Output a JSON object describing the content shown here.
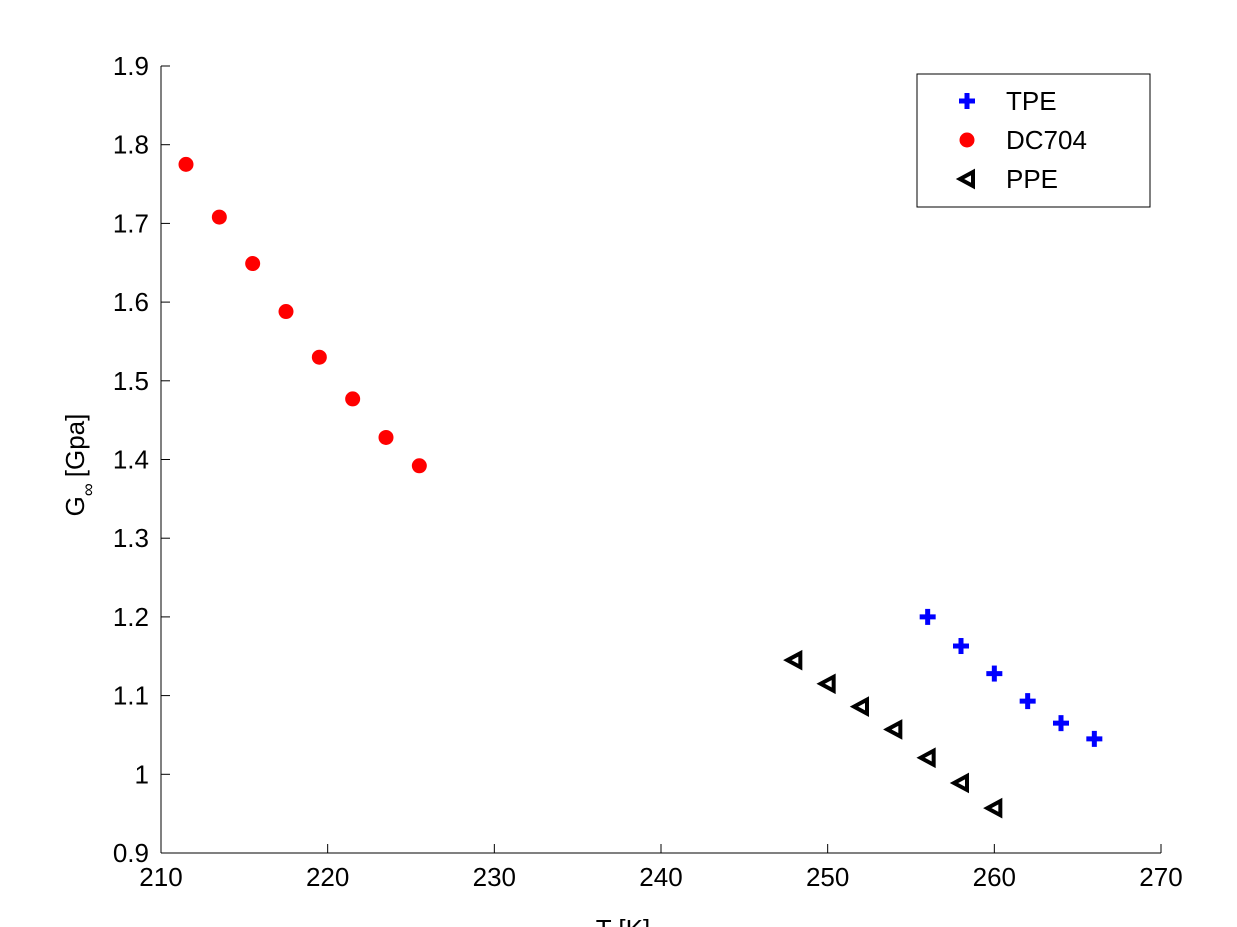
{
  "chart_data": {
    "type": "scatter",
    "title": "",
    "xlabel": "T [K]",
    "ylabel": "G∞ [Gpa]",
    "ylabel_main": "G",
    "ylabel_sub": "∞",
    "ylabel_unit": "[Gpa]",
    "xlim": [
      210,
      270
    ],
    "ylim": [
      0.9,
      1.9
    ],
    "xticks": [
      "210",
      "220",
      "230",
      "240",
      "250",
      "260",
      "270"
    ],
    "yticks": [
      "0.9",
      "1",
      "1.1",
      "1.2",
      "1.3",
      "1.4",
      "1.5",
      "1.6",
      "1.7",
      "1.8",
      "1.9"
    ],
    "grid": false,
    "legend_position": "top-right",
    "series": [
      {
        "name": "TPE",
        "marker": "plus",
        "color": "#0000ff",
        "points": [
          [
            256,
            1.2
          ],
          [
            258,
            1.163
          ],
          [
            260,
            1.128
          ],
          [
            262,
            1.093
          ],
          [
            264,
            1.065
          ],
          [
            266,
            1.045
          ]
        ]
      },
      {
        "name": "DC704",
        "marker": "circle",
        "color": "#ff0000",
        "points": [
          [
            211.5,
            1.775
          ],
          [
            213.5,
            1.708
          ],
          [
            215.5,
            1.649
          ],
          [
            217.5,
            1.588
          ],
          [
            219.5,
            1.53
          ],
          [
            221.5,
            1.477
          ],
          [
            223.5,
            1.428
          ],
          [
            225.5,
            1.392
          ]
        ]
      },
      {
        "name": "PPE",
        "marker": "triangle-left",
        "color": "#000000",
        "points": [
          [
            248,
            1.145
          ],
          [
            250,
            1.115
          ],
          [
            252,
            1.086
          ],
          [
            254,
            1.057
          ],
          [
            256,
            1.021
          ],
          [
            258,
            0.989
          ],
          [
            260,
            0.957
          ]
        ]
      }
    ]
  }
}
